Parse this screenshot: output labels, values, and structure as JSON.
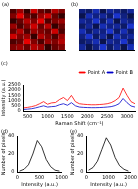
{
  "chart_data": [
    {
      "type": "heatmap",
      "title": "(a)",
      "color": "#ff0000",
      "tick_labels": false,
      "cells": [
        [
          0.3,
          0.6,
          0.2,
          0.8,
          0.4,
          0.3,
          0.7,
          0.5
        ],
        [
          0.5,
          0.9,
          0.4,
          0.3,
          0.6,
          0.8,
          0.4,
          0.2
        ],
        [
          0.2,
          0.4,
          0.7,
          0.5,
          0.9,
          0.3,
          0.5,
          0.6
        ],
        [
          0.6,
          0.3,
          0.5,
          0.8,
          0.4,
          0.7,
          0.2,
          0.4
        ],
        [
          0.4,
          0.7,
          0.3,
          0.6,
          0.5,
          0.4,
          0.8,
          0.3
        ],
        [
          0.8,
          0.5,
          0.6,
          0.2,
          0.7,
          0.5,
          0.3,
          0.6
        ],
        [
          0.3,
          0.4,
          0.9,
          0.5,
          0.3,
          0.6,
          0.5,
          0.7
        ],
        [
          0.5,
          0.6,
          0.4,
          0.7,
          0.6,
          0.2,
          0.4,
          0.5
        ]
      ]
    },
    {
      "type": "heatmap",
      "title": "(b)",
      "color": "#2040ff",
      "tick_labels": false,
      "cells": [
        [
          0.5,
          0.4,
          0.7,
          0.3,
          0.6,
          0.5,
          0.4,
          0.6
        ],
        [
          0.3,
          0.7,
          0.5,
          0.6,
          0.4,
          0.8,
          0.5,
          0.3
        ],
        [
          0.6,
          0.5,
          0.8,
          0.4,
          0.7,
          0.3,
          0.6,
          0.5
        ],
        [
          0.4,
          0.6,
          0.3,
          0.7,
          0.5,
          0.6,
          0.4,
          0.8
        ],
        [
          0.7,
          0.4,
          0.6,
          0.5,
          0.8,
          0.4,
          0.7,
          0.4
        ],
        [
          0.5,
          0.8,
          0.4,
          0.6,
          0.3,
          0.7,
          0.5,
          0.6
        ],
        [
          0.4,
          0.5,
          0.7,
          0.3,
          0.6,
          0.5,
          0.8,
          0.4
        ],
        [
          0.6,
          0.3,
          0.5,
          0.8,
          0.4,
          0.6,
          0.3,
          0.7
        ]
      ]
    },
    {
      "type": "line",
      "title": "(c)",
      "x_label": "Raman Shift (cm⁻¹)",
      "y_label": "Intensity (a.u.)",
      "legend": "upper right",
      "x": [
        400,
        500,
        600,
        700,
        800,
        900,
        1000,
        1100,
        1200,
        1300,
        1400,
        1500,
        1600,
        1700,
        1800,
        1900,
        2000,
        2100,
        2200,
        2300,
        2400,
        2500,
        2600,
        2700,
        2800,
        2900,
        3000,
        3100,
        3200
      ],
      "series": [
        {
          "name": "Point A",
          "color": "#ff0000",
          "values": [
            300,
            350,
            420,
            520,
            700,
            900,
            650,
            780,
            820,
            1100,
            1300,
            1000,
            1500,
            900,
            700,
            650,
            620,
            600,
            600,
            620,
            650,
            700,
            800,
            1000,
            1300,
            2200,
            1500,
            900,
            700
          ]
        },
        {
          "name": "Point B",
          "color": "#0000cc",
          "values": [
            150,
            180,
            220,
            300,
            400,
            500,
            380,
            420,
            450,
            600,
            700,
            550,
            800,
            500,
            380,
            350,
            330,
            320,
            320,
            330,
            350,
            380,
            420,
            520,
            700,
            1200,
            800,
            480,
            380
          ]
        }
      ],
      "xlim": [
        400,
        3200
      ],
      "xticks": [
        500,
        1000,
        1500,
        2000,
        2500,
        3000
      ],
      "ylim": [
        0,
        2500
      ],
      "yticks": [
        0,
        500,
        1000,
        1500,
        2000,
        2500
      ]
    },
    {
      "type": "line",
      "title": "(d)",
      "x_label": "Intensity (a.u.)",
      "y_label": "Number of pixels",
      "color": "#000000",
      "x": [
        50,
        150,
        250,
        350,
        450,
        550,
        650,
        750,
        850,
        950
      ],
      "values": [
        1,
        3,
        8,
        20,
        35,
        28,
        14,
        6,
        2,
        1
      ],
      "xlim": [
        0,
        1000
      ],
      "xticks": [
        0,
        500,
        1000
      ],
      "ylim": [
        0,
        40
      ],
      "yticks": [
        0,
        20,
        40
      ]
    },
    {
      "type": "line",
      "title": "(e)",
      "x_label": "Intensity (a.u.)",
      "y_label": "Number of pixels",
      "color": "#000000",
      "x": [
        100,
        300,
        500,
        700,
        900,
        1100,
        1300,
        1500,
        1700,
        1900
      ],
      "values": [
        2,
        5,
        12,
        25,
        38,
        30,
        16,
        7,
        3,
        1
      ],
      "xlim": [
        0,
        2000
      ],
      "xticks": [
        0,
        1000,
        2000
      ],
      "ylim": [
        0,
        40
      ],
      "yticks": [
        0,
        20,
        40
      ]
    }
  ]
}
